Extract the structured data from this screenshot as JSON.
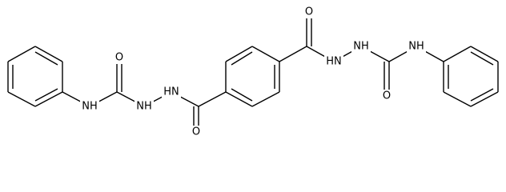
{
  "atoms": [
    {
      "label": "NH"
    },
    {
      "label": "O"
    },
    {
      "label": "NH"
    },
    {
      "label": "HN"
    },
    {
      "label": "O"
    },
    {
      "label": "O"
    },
    {
      "label": "HN"
    },
    {
      "label": "NH"
    },
    {
      "label": "O"
    },
    {
      "label": "NH"
    }
  ]
}
